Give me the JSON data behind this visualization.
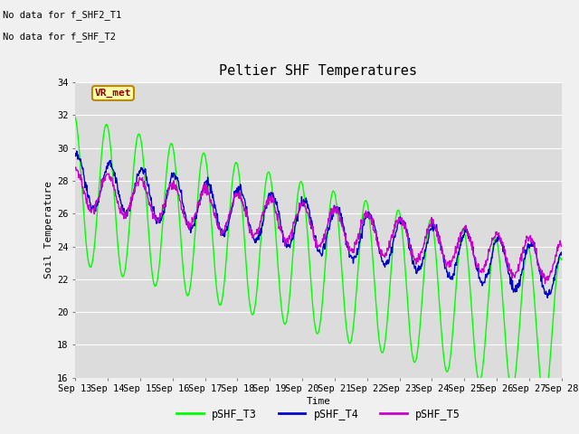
{
  "title": "Peltier SHF Temperatures",
  "xlabel": "Time",
  "ylabel": "Soil Temperature",
  "no_data_text": [
    "No data for f_SHF2_T1",
    "No data for f_SHF_T2"
  ],
  "vr_met_label": "VR_met",
  "ylim": [
    16,
    34
  ],
  "xlim": [
    0,
    15
  ],
  "yticks": [
    16,
    18,
    20,
    22,
    24,
    26,
    28,
    30,
    32,
    34
  ],
  "xtick_labels": [
    "Sep 13",
    "Sep 14",
    "Sep 15",
    "Sep 16",
    "Sep 17",
    "Sep 18",
    "Sep 19",
    "Sep 20",
    "Sep 21",
    "Sep 22",
    "Sep 23",
    "Sep 24",
    "Sep 25",
    "Sep 26",
    "Sep 27",
    "Sep 28"
  ],
  "fig_bg_color": "#f0f0f0",
  "plot_bg_color": "#dcdcdc",
  "line_colors": {
    "T3": "#00ff00",
    "T4": "#0000cc",
    "T5": "#cc00cc"
  },
  "legend_labels": [
    "pSHF_T3",
    "pSHF_T4",
    "pSHF_T5"
  ],
  "title_fontsize": 11,
  "axis_fontsize": 8,
  "tick_fontsize": 7.5
}
